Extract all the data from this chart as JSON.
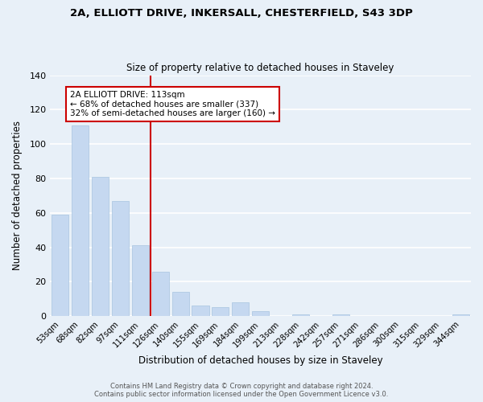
{
  "title_line1": "2A, ELLIOTT DRIVE, INKERSALL, CHESTERFIELD, S43 3DP",
  "title_line2": "Size of property relative to detached houses in Staveley",
  "xlabel": "Distribution of detached houses by size in Staveley",
  "ylabel": "Number of detached properties",
  "bar_labels": [
    "53sqm",
    "68sqm",
    "82sqm",
    "97sqm",
    "111sqm",
    "126sqm",
    "140sqm",
    "155sqm",
    "169sqm",
    "184sqm",
    "199sqm",
    "213sqm",
    "228sqm",
    "242sqm",
    "257sqm",
    "271sqm",
    "286sqm",
    "300sqm",
    "315sqm",
    "329sqm",
    "344sqm"
  ],
  "bar_values": [
    59,
    111,
    81,
    67,
    41,
    26,
    14,
    6,
    5,
    8,
    3,
    0,
    1,
    0,
    1,
    0,
    0,
    0,
    0,
    0,
    1
  ],
  "bar_color": "#c5d8f0",
  "bar_edge_color": "#a8c4e0",
  "grid_color": "#ffffff",
  "bg_color": "#e8f0f8",
  "annotation_text": "2A ELLIOTT DRIVE: 113sqm\n← 68% of detached houses are smaller (337)\n32% of semi-detached houses are larger (160) →",
  "annotation_box_color": "#ffffff",
  "annotation_box_edge": "#cc0000",
  "vline_color": "#cc0000",
  "ylim": [
    0,
    140
  ],
  "yticks": [
    0,
    20,
    40,
    60,
    80,
    100,
    120,
    140
  ],
  "footnote": "Contains HM Land Registry data © Crown copyright and database right 2024.\nContains public sector information licensed under the Open Government Licence v3.0."
}
